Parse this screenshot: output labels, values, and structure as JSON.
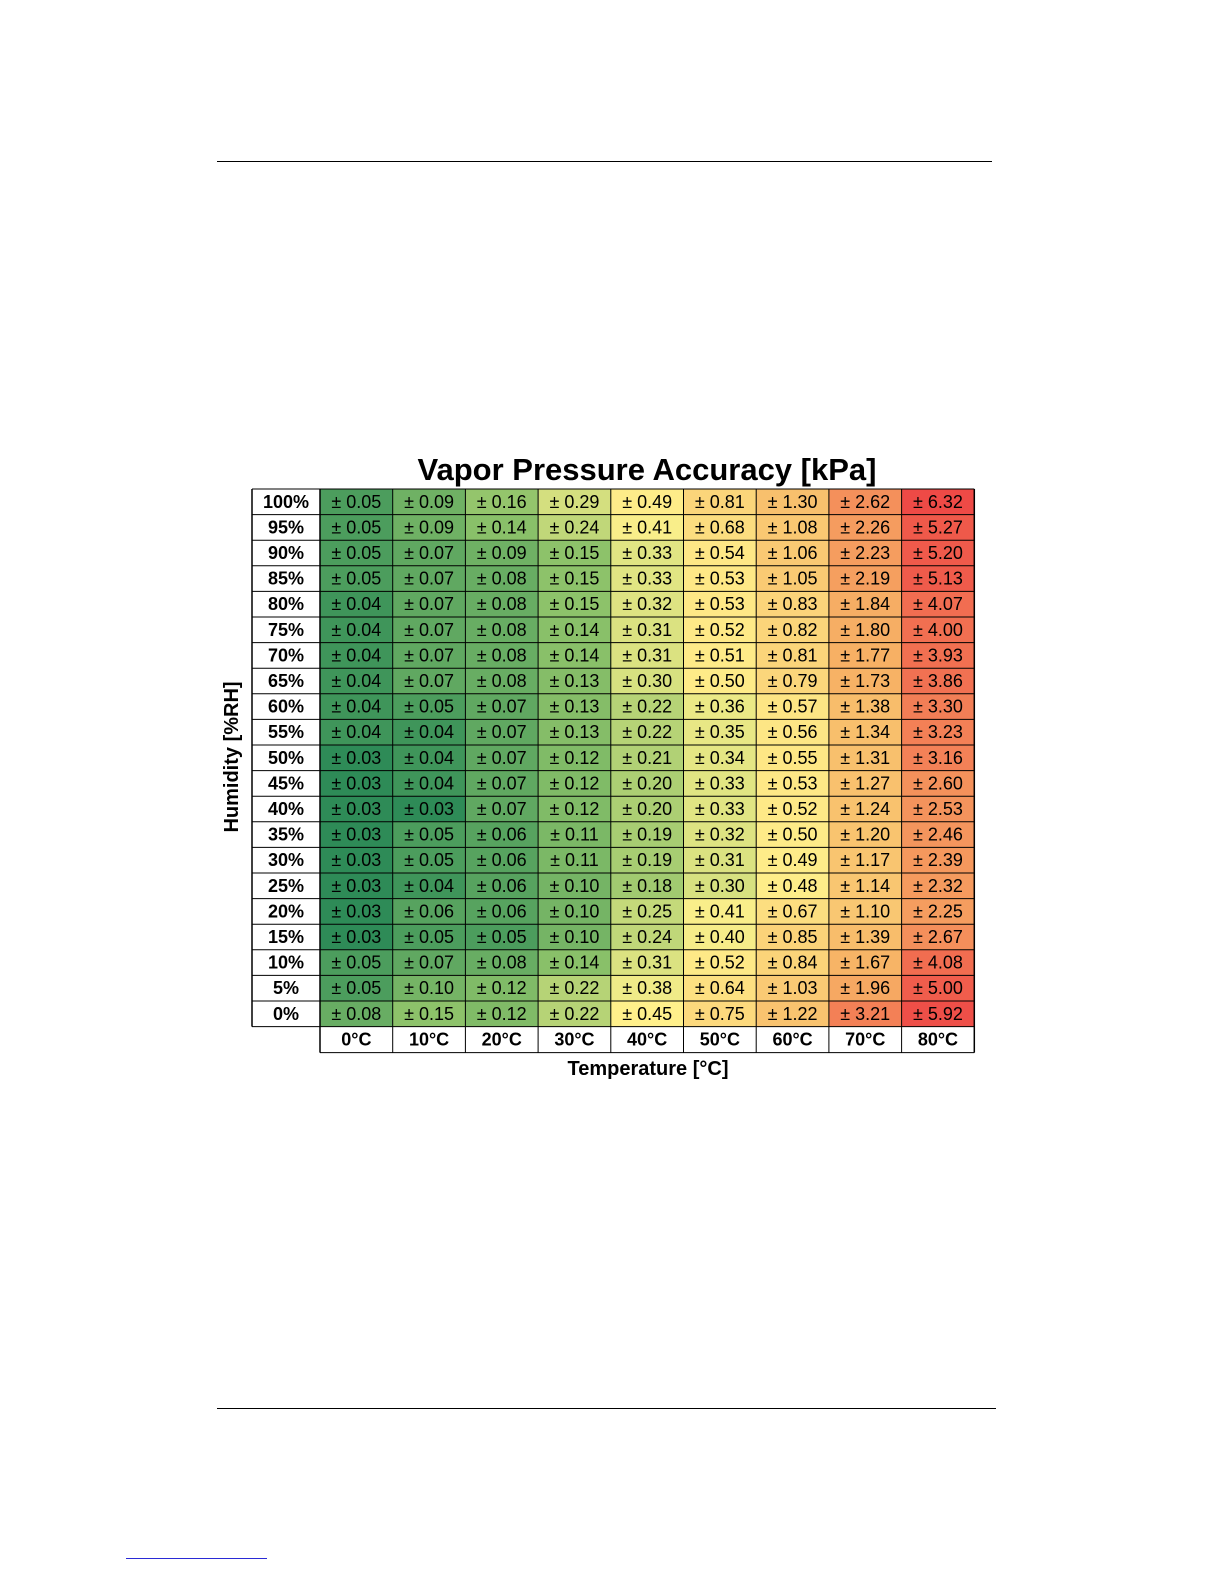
{
  "chart_data": {
    "type": "heatmap",
    "title": "Vapor Pressure Accuracy [kPa]",
    "xlabel": "Temperature [°C]",
    "ylabel": "Humidity [%RH]",
    "value_prefix": "± ",
    "columns": [
      "0°C",
      "10°C",
      "20°C",
      "30°C",
      "40°C",
      "50°C",
      "60°C",
      "70°C",
      "80°C"
    ],
    "rows": [
      "100%",
      "95%",
      "90%",
      "85%",
      "80%",
      "75%",
      "70%",
      "65%",
      "60%",
      "55%",
      "50%",
      "45%",
      "40%",
      "35%",
      "30%",
      "25%",
      "20%",
      "15%",
      "10%",
      "5%",
      "0%"
    ],
    "values": [
      [
        "0.05",
        "0.09",
        "0.16",
        "0.29",
        "0.49",
        "0.81",
        "1.30",
        "2.62",
        "6.32"
      ],
      [
        "0.05",
        "0.09",
        "0.14",
        "0.24",
        "0.41",
        "0.68",
        "1.08",
        "2.26",
        "5.27"
      ],
      [
        "0.05",
        "0.07",
        "0.09",
        "0.15",
        "0.33",
        "0.54",
        "1.06",
        "2.23",
        "5.20"
      ],
      [
        "0.05",
        "0.07",
        "0.08",
        "0.15",
        "0.33",
        "0.53",
        "1.05",
        "2.19",
        "5.13"
      ],
      [
        "0.04",
        "0.07",
        "0.08",
        "0.15",
        "0.32",
        "0.53",
        "0.83",
        "1.84",
        "4.07"
      ],
      [
        "0.04",
        "0.07",
        "0.08",
        "0.14",
        "0.31",
        "0.52",
        "0.82",
        "1.80",
        "4.00"
      ],
      [
        "0.04",
        "0.07",
        "0.08",
        "0.14",
        "0.31",
        "0.51",
        "0.81",
        "1.77",
        "3.93"
      ],
      [
        "0.04",
        "0.07",
        "0.08",
        "0.13",
        "0.30",
        "0.50",
        "0.79",
        "1.73",
        "3.86"
      ],
      [
        "0.04",
        "0.05",
        "0.07",
        "0.13",
        "0.22",
        "0.36",
        "0.57",
        "1.38",
        "3.30"
      ],
      [
        "0.04",
        "0.04",
        "0.07",
        "0.13",
        "0.22",
        "0.35",
        "0.56",
        "1.34",
        "3.23"
      ],
      [
        "0.03",
        "0.04",
        "0.07",
        "0.12",
        "0.21",
        "0.34",
        "0.55",
        "1.31",
        "3.16"
      ],
      [
        "0.03",
        "0.04",
        "0.07",
        "0.12",
        "0.20",
        "0.33",
        "0.53",
        "1.27",
        "2.60"
      ],
      [
        "0.03",
        "0.03",
        "0.07",
        "0.12",
        "0.20",
        "0.33",
        "0.52",
        "1.24",
        "2.53"
      ],
      [
        "0.03",
        "0.05",
        "0.06",
        "0.11",
        "0.19",
        "0.32",
        "0.50",
        "1.20",
        "2.46"
      ],
      [
        "0.03",
        "0.05",
        "0.06",
        "0.11",
        "0.19",
        "0.31",
        "0.49",
        "1.17",
        "2.39"
      ],
      [
        "0.03",
        "0.04",
        "0.06",
        "0.10",
        "0.18",
        "0.30",
        "0.48",
        "1.14",
        "2.32"
      ],
      [
        "0.03",
        "0.06",
        "0.06",
        "0.10",
        "0.25",
        "0.41",
        "0.67",
        "1.10",
        "2.25"
      ],
      [
        "0.03",
        "0.05",
        "0.05",
        "0.10",
        "0.24",
        "0.40",
        "0.85",
        "1.39",
        "2.67"
      ],
      [
        "0.05",
        "0.07",
        "0.08",
        "0.14",
        "0.31",
        "0.52",
        "0.84",
        "1.67",
        "4.08"
      ],
      [
        "0.05",
        "0.10",
        "0.12",
        "0.22",
        "0.38",
        "0.64",
        "1.03",
        "1.96",
        "5.00"
      ],
      [
        "0.08",
        "0.15",
        "0.12",
        "0.22",
        "0.45",
        "0.75",
        "1.22",
        "3.21",
        "5.92"
      ]
    ],
    "color_scale": {
      "low": "#2e8b57",
      "mid_low": "#8dc26a",
      "mid": "#fff18c",
      "mid_high": "#f7b566",
      "high": "#ee4a46"
    },
    "grid": true,
    "legend": "none"
  }
}
